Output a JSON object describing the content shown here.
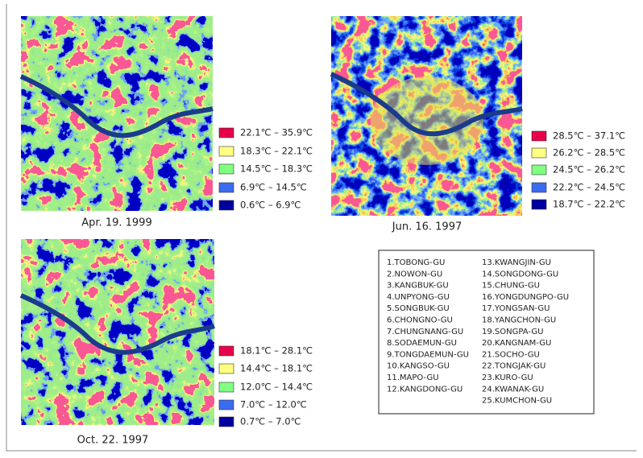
{
  "panels": [
    {
      "caption": "Apr. 19. 1999",
      "legend": [
        {
          "label": "22.1℃ – 35.9℃",
          "color": "#e8004a"
        },
        {
          "label": "18.3℃ – 22.1℃",
          "color": "#ffff80"
        },
        {
          "label": "14.5℃ – 18.3℃",
          "color": "#80ff80"
        },
        {
          "label": "6.9℃ – 14.5℃",
          "color": "#3a6cf0"
        },
        {
          "label": "0.6℃ – 6.9℃",
          "color": "#0000a0"
        }
      ]
    },
    {
      "caption": "Jun. 16. 1997",
      "legend": [
        {
          "label": "28.5℃ – 37.1℃",
          "color": "#e8004a"
        },
        {
          "label": "26.2℃ – 28.5℃",
          "color": "#ffff80"
        },
        {
          "label": "24.5℃ – 26.2℃",
          "color": "#80ff80"
        },
        {
          "label": "22.2℃ – 24.5℃",
          "color": "#3a6cf0"
        },
        {
          "label": "18.7℃ – 22.2℃",
          "color": "#0000a0"
        }
      ]
    },
    {
      "caption": "Oct. 22. 1997",
      "legend": [
        {
          "label": "18.1℃ – 28.1℃",
          "color": "#e8004a"
        },
        {
          "label": "14.4℃ – 18.1℃",
          "color": "#ffff80"
        },
        {
          "label": "12.0℃ – 14.4℃",
          "color": "#80ff80"
        },
        {
          "label": "7.0℃ – 12.0℃",
          "color": "#3a6cf0"
        },
        {
          "label": "0.7℃ – 7.0℃",
          "color": "#0000a0"
        }
      ]
    }
  ],
  "districts": [
    "1.TOBONG-GU",
    "2.NOWON-GU",
    "3.KANGBUK-GU",
    "4.UNPYONG-GU",
    "5.SONGBUK-GU",
    "6.CHONGNO-GU",
    "7.CHUNGNANG-GU",
    "8.SODAEMUN-GU",
    "9.TONGDAEMUN-GU",
    "10.KANGSO-GU",
    "11.MAPO-GU",
    "12.KANGDONG-GU",
    "13.KWANGJIN-GU",
    "14.SONGDONG-GU",
    "15.CHUNG-GU",
    "16.YONGDUNGPO-GU",
    "17.YONGSAN-GU",
    "18.YANGCHON-GU",
    "19.SONGPA-GU",
    "20.KANGNAM-GU",
    "21.SOCHO-GU",
    "22.TONGJAK-GU",
    "23.KURO-GU",
    "24.KWANAK-GU",
    "25.KUMCHON-GU"
  ]
}
